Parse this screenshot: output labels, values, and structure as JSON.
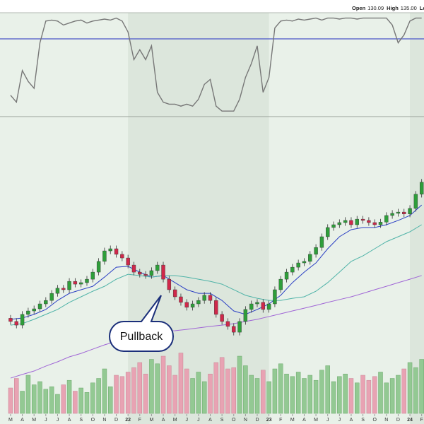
{
  "chart_data": {
    "type": "candlestick",
    "quote": [
      {
        "label": "Open",
        "value": "130.09"
      },
      {
        "label": "High",
        "value": "135.00"
      },
      {
        "label": "Low"
      }
    ],
    "annotation": "Pullback",
    "xlim": [
      1.1,
      37.2
    ],
    "xticks": [
      {
        "value": 2,
        "label": "M"
      },
      {
        "value": 3,
        "label": "A"
      },
      {
        "value": 4,
        "label": "M"
      },
      {
        "value": 5,
        "label": "J"
      },
      {
        "value": 6,
        "label": "J"
      },
      {
        "value": 7,
        "label": "A"
      },
      {
        "value": 8,
        "label": "S"
      },
      {
        "value": 9,
        "label": "O"
      },
      {
        "value": 10,
        "label": "N"
      },
      {
        "value": 11,
        "label": "D"
      },
      {
        "value": 12,
        "label": "22"
      },
      {
        "value": 13,
        "label": "F"
      },
      {
        "value": 14,
        "label": "M"
      },
      {
        "value": 15,
        "label": "A"
      },
      {
        "value": 16,
        "label": "M"
      },
      {
        "value": 17,
        "label": "J"
      },
      {
        "value": 18,
        "label": "J"
      },
      {
        "value": 19,
        "label": "A"
      },
      {
        "value": 20,
        "label": "S"
      },
      {
        "value": 21,
        "label": "O"
      },
      {
        "value": 22,
        "label": "N"
      },
      {
        "value": 23,
        "label": "D"
      },
      {
        "value": 24,
        "label": "23"
      },
      {
        "value": 25,
        "label": "F"
      },
      {
        "value": 26,
        "label": "M"
      },
      {
        "value": 27,
        "label": "A"
      },
      {
        "value": 28,
        "label": "M"
      },
      {
        "value": 29,
        "label": "J"
      },
      {
        "value": 30,
        "label": "J"
      },
      {
        "value": 31,
        "label": "A"
      },
      {
        "value": 32,
        "label": "S"
      },
      {
        "value": 33,
        "label": "O"
      },
      {
        "value": 34,
        "label": "N"
      },
      {
        "value": 35,
        "label": "D"
      },
      {
        "value": 36,
        "label": "24"
      },
      {
        "value": 37,
        "label": "F"
      }
    ],
    "ylim": [
      20,
      160
    ],
    "up_color": "#2e9e3a",
    "down_color": "#d0284a",
    "x": [
      2,
      2.5,
      3,
      3.5,
      4,
      4.5,
      5,
      5.5,
      6,
      6.5,
      7,
      7.5,
      8,
      8.5,
      9,
      9.5,
      10,
      10.5,
      11,
      11.5,
      12,
      12.5,
      13,
      13.5,
      14,
      14.5,
      15,
      15.5,
      16,
      16.5,
      17,
      17.5,
      18,
      18.5,
      19,
      19.5,
      20,
      20.5,
      21,
      21.5,
      22,
      22.5,
      23,
      23.5,
      24,
      24.5,
      25,
      25.5,
      26,
      26.5,
      27,
      27.5,
      28,
      28.5,
      29,
      29.5,
      30,
      30.5,
      31,
      31.5,
      32,
      32.5,
      33,
      33.5,
      34,
      34.5,
      35,
      35.5,
      36,
      36.5,
      37
    ],
    "open": [
      66,
      64.5,
      62.8,
      67.8,
      69.4,
      70.4,
      72.7,
      74.3,
      77.6,
      80,
      79.3,
      83.2,
      81.9,
      82.6,
      84.2,
      87.5,
      92.5,
      97.4,
      98.4,
      95.8,
      94.1,
      90.8,
      87.5,
      86.5,
      85.9,
      88.2,
      90.8,
      84.2,
      79.3,
      76,
      73.4,
      71.1,
      72.7,
      74.3,
      76.7,
      74.3,
      67.8,
      64.5,
      62.2,
      59.5,
      64.5,
      70.1,
      72.7,
      73.4,
      70.1,
      72.7,
      79.3,
      84.2,
      87.5,
      89.8,
      91.8,
      92.5,
      95.8,
      99,
      104,
      108.3,
      109.6,
      110.6,
      111.6,
      109.6,
      112.2,
      111.6,
      110.6,
      109.6,
      110.8,
      113.9,
      114.9,
      115.5,
      114.6,
      117.2,
      123.8
    ],
    "high": [
      67.5,
      66,
      69.3,
      70.9,
      71.9,
      74.2,
      75.8,
      79.1,
      81.5,
      81.5,
      84.7,
      84.7,
      84.1,
      85.7,
      89,
      94,
      98.9,
      99.9,
      99.9,
      97.3,
      95.6,
      92.3,
      89,
      88,
      89.7,
      92.3,
      92.3,
      85.7,
      80.8,
      77.5,
      74.9,
      74.2,
      75.8,
      78.2,
      78.2,
      75.8,
      69.3,
      66,
      63.7,
      66,
      71.6,
      74.2,
      74.9,
      74.9,
      74.2,
      80.8,
      85.7,
      89,
      91.3,
      93.3,
      94,
      97.3,
      100.5,
      105.5,
      109.8,
      111.1,
      112.1,
      113.1,
      113.1,
      113.7,
      113.7,
      113.1,
      112.1,
      112.3,
      115.4,
      116.4,
      117,
      117,
      118.7,
      125.3,
      130.9
    ],
    "low": [
      63,
      61.3,
      61.3,
      66.3,
      67.9,
      68.9,
      71.2,
      72.8,
      76.1,
      77.8,
      77.8,
      80.4,
      80.4,
      81.1,
      82.7,
      86,
      91,
      95.9,
      94.3,
      92.6,
      89.3,
      86,
      85,
      84.4,
      84.4,
      86.7,
      82.7,
      77.8,
      74.5,
      71.9,
      69.6,
      69.6,
      71.2,
      72.8,
      72.8,
      66.3,
      63,
      60.7,
      58,
      58,
      63,
      68.6,
      71.2,
      68.6,
      68.6,
      71.2,
      77.8,
      82.7,
      86,
      88.3,
      90.3,
      91,
      94.3,
      97.5,
      102.5,
      106.8,
      108.1,
      109.1,
      108.1,
      108.1,
      110.1,
      109.1,
      108.1,
      108.1,
      109.3,
      112.4,
      113.4,
      113.1,
      113.1,
      115.7,
      122.3
    ],
    "close": [
      64.5,
      62.8,
      67.8,
      69.4,
      70.4,
      72.7,
      74.3,
      77.6,
      80,
      79.3,
      83.2,
      81.9,
      82.6,
      84.2,
      87.5,
      92.5,
      97.4,
      98.4,
      95.8,
      94.1,
      90.8,
      87.5,
      86.5,
      85.9,
      88.2,
      90.8,
      84.2,
      79.3,
      76,
      73.4,
      71.1,
      72.7,
      74.3,
      76.7,
      74.3,
      67.8,
      64.5,
      62.2,
      59.5,
      64.5,
      70.1,
      72.7,
      73.4,
      70.1,
      72.7,
      79.3,
      84.2,
      87.5,
      89.8,
      91.8,
      92.5,
      95.8,
      99,
      104,
      108.3,
      109.6,
      110.6,
      111.6,
      109.6,
      112.2,
      111.6,
      110.6,
      109.6,
      110.8,
      113.9,
      114.9,
      115.5,
      114.6,
      117.2,
      123.8,
      129.4
    ],
    "volume": {
      "ylim": [
        0,
        120
      ],
      "up_color": "#93c993",
      "down_color": "#e8a3b3",
      "values": [
        40,
        55,
        35,
        60,
        45,
        50,
        38,
        42,
        30,
        45,
        52,
        35,
        40,
        33,
        48,
        55,
        70,
        42,
        60,
        58,
        65,
        72,
        80,
        62,
        85,
        78,
        90,
        75,
        60,
        95,
        70,
        55,
        65,
        50,
        62,
        80,
        88,
        70,
        72,
        90,
        75,
        60,
        55,
        68,
        50,
        70,
        78,
        62,
        58,
        65,
        55,
        60,
        52,
        68,
        75,
        50,
        58,
        62,
        55,
        48,
        60,
        52,
        58,
        65,
        48,
        55,
        60,
        70,
        80,
        72,
        85
      ]
    },
    "ma_x": [
      2,
      3,
      4,
      5,
      6,
      7,
      8,
      9,
      10,
      11,
      12,
      13,
      14,
      15,
      16,
      17,
      18,
      19,
      20,
      21,
      22,
      23,
      24,
      25,
      26,
      27,
      28,
      29,
      30,
      31,
      32,
      33,
      34,
      35,
      36,
      37
    ],
    "moving_averages": [
      {
        "color": "#2b3fc4",
        "values": [
          65.5,
          66.1,
          67.8,
          70.1,
          74.3,
          77.6,
          79.3,
          80.9,
          85.2,
          89.8,
          90.2,
          87.5,
          85.2,
          85.9,
          82.6,
          79.3,
          77.6,
          77.6,
          74.3,
          69.4,
          67.8,
          70.1,
          72.7,
          76.7,
          82.6,
          87.5,
          91.8,
          98.4,
          104,
          107.3,
          108.3,
          108.3,
          109.6,
          111.6,
          113.9,
          118.8
        ]
      },
      {
        "color": "#4fb3a8",
        "values": [
          62.8,
          63.5,
          65.5,
          67.8,
          70.1,
          73.4,
          76,
          78.6,
          80.9,
          84.2,
          86.5,
          85.9,
          85.2,
          85.9,
          85.9,
          85.2,
          84.2,
          83.2,
          81.9,
          79.3,
          76.7,
          75.3,
          74.3,
          74.3,
          75.3,
          76,
          78.6,
          82.6,
          87.5,
          92.5,
          95.1,
          98.4,
          101.7,
          104,
          106.3,
          109.6
        ]
      },
      {
        "color": "#a066d6",
        "values": [
          38.1,
          39.8,
          41.4,
          43.7,
          45.7,
          48,
          49.6,
          51.6,
          53.6,
          55.2,
          56.9,
          58.2,
          59.2,
          59.9,
          60.2,
          60.8,
          61.5,
          62.2,
          62.8,
          63.5,
          64.5,
          65.5,
          66.8,
          68.1,
          69.4,
          70.7,
          72,
          73.4,
          74.7,
          76,
          77.6,
          79.3,
          80.9,
          82.6,
          84.2,
          85.9
        ]
      }
    ],
    "oscillator": {
      "ylim": [
        0,
        100
      ],
      "level": 75,
      "color": "#777777",
      "level_color": "#4a55c8",
      "values": [
        18,
        11,
        43,
        32,
        25,
        71,
        93,
        94,
        93,
        89,
        91,
        93,
        94,
        91,
        93,
        94,
        95,
        94,
        96,
        93,
        82,
        54,
        64,
        54,
        68,
        21,
        11,
        9,
        9,
        7,
        9,
        7,
        14,
        29,
        34,
        7,
        2,
        2,
        2,
        14,
        36,
        50,
        68,
        21,
        36,
        86,
        93,
        94,
        93,
        95,
        94,
        95,
        96,
        94,
        96,
        96,
        95,
        96,
        96,
        95,
        96,
        96,
        96,
        96,
        96,
        89,
        71,
        79,
        93,
        96,
        96
      ]
    }
  }
}
